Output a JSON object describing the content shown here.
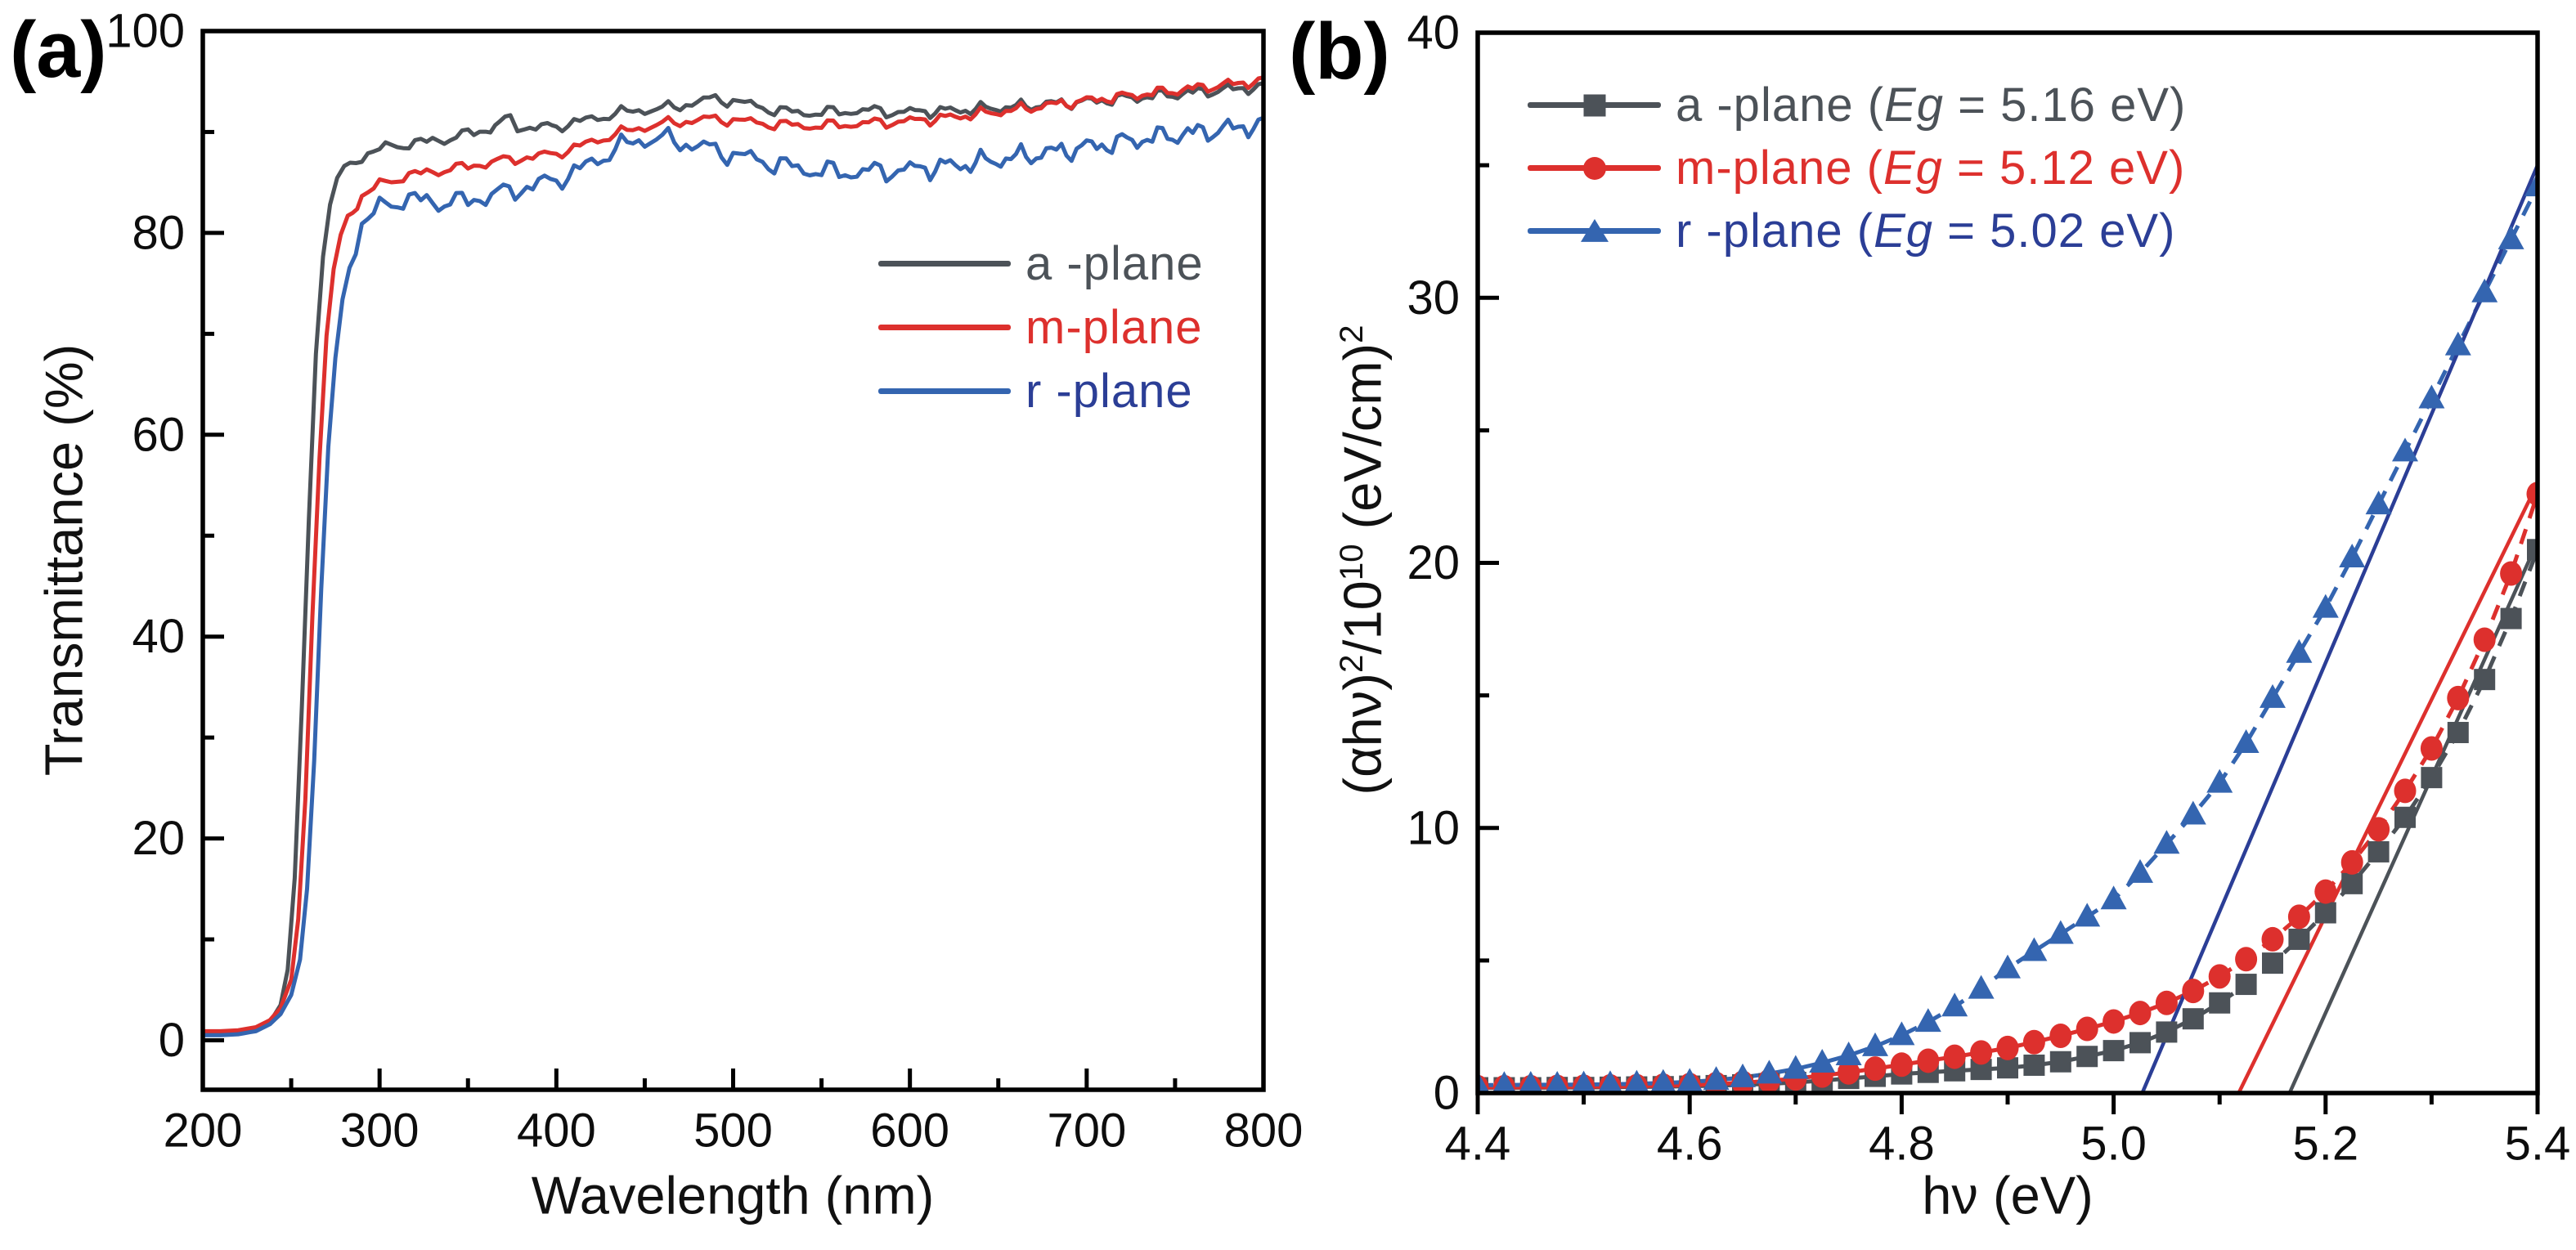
{
  "figure": {
    "panel_a_label": "(a)",
    "panel_b_label": "(b)"
  },
  "panel_a": {
    "x_title": "Wavelength (nm)",
    "y_title": "Transmittance (%)",
    "legend": [
      {
        "label": "a -plane",
        "line_color": "#4c5258",
        "text_color": "#4c5258"
      },
      {
        "label": "m-plane",
        "line_color": "#dd302d",
        "text_color": "#dd302d"
      },
      {
        "label": "r -plane",
        "line_color": "#3465b0",
        "text_color": "#2b3e96"
      }
    ]
  },
  "panel_b": {
    "x_title": "hν (eV)",
    "y_title_segments": [
      {
        "t": "(αhν)"
      },
      {
        "t": "2",
        "sup": true
      },
      {
        "t": "/10"
      },
      {
        "t": "10",
        "sup": true
      },
      {
        "t": " (eV/cm)"
      },
      {
        "t": "2",
        "sup": true
      }
    ],
    "legend": [
      {
        "pre": "a -plane (",
        "eg": "Eg",
        "post": " = 5.16 eV)",
        "marker": "square",
        "line_color": "#4c5258",
        "text_color": "#4c5258"
      },
      {
        "pre": "m-plane (",
        "eg": "Eg",
        "post": " = 5.12 eV)",
        "marker": "circle",
        "line_color": "#dd302d",
        "text_color": "#dd302d"
      },
      {
        "pre": "r -plane (",
        "eg": "Eg",
        "post": " = 5.02 eV)",
        "marker": "triangle",
        "line_color": "#3465b0",
        "text_color": "#2b3e96"
      }
    ]
  },
  "chart_data": [
    {
      "panel": "a",
      "type": "line",
      "title": "",
      "xlabel": "Wavelength (nm)",
      "ylabel": "Transmittance (%)",
      "xlim": [
        200,
        800
      ],
      "ylim": [
        -4.9,
        100
      ],
      "grid": false,
      "legend_position": "right-upper-third",
      "x_ticks": [
        200,
        300,
        400,
        500,
        600,
        700,
        800
      ],
      "x_tick_labels": [
        "200",
        "300",
        "400",
        "500",
        "600",
        "700",
        "800"
      ],
      "x_minor_ticks": [
        250,
        350,
        450,
        550,
        650,
        750
      ],
      "y_ticks": [
        0,
        20,
        40,
        60,
        80,
        100
      ],
      "y_tick_labels": [
        "0",
        "20",
        "40",
        "60",
        "80",
        "100"
      ],
      "y_minor_ticks": [
        10,
        30,
        50,
        70,
        90
      ],
      "series": [
        {
          "name": "a-plane",
          "color": "#4c5258",
          "noise_amp": 0.3,
          "points": [
            [
              200,
              0.6
            ],
            [
              210,
              0.6
            ],
            [
              220,
              0.7
            ],
            [
              230,
              1.0
            ],
            [
              238,
              1.8
            ],
            [
              244,
              3.5
            ],
            [
              248,
              7
            ],
            [
              252,
              16
            ],
            [
              256,
              33
            ],
            [
              260,
              52
            ],
            [
              264,
              68
            ],
            [
              268,
              78
            ],
            [
              272,
              83
            ],
            [
              276,
              85
            ],
            [
              280,
              86.3
            ],
            [
              290,
              87.6
            ],
            [
              300,
              88.3
            ],
            [
              310,
              88.7
            ],
            [
              320,
              88.9
            ],
            [
              330,
              89.1
            ],
            [
              340,
              89.4
            ],
            [
              350,
              89.8
            ],
            [
              360,
              90.2
            ],
            [
              368,
              90.8
            ],
            [
              374,
              91.4
            ],
            [
              378,
              90.6
            ],
            [
              385,
              90.4
            ],
            [
              395,
              90.5
            ],
            [
              400,
              90.6
            ],
            [
              410,
              90.9
            ],
            [
              420,
              91.3
            ],
            [
              430,
              91.7
            ],
            [
              440,
              92.0
            ],
            [
              450,
              92.2
            ],
            [
              460,
              92.3
            ],
            [
              470,
              92.6
            ],
            [
              480,
              93.0
            ],
            [
              490,
              93.3
            ],
            [
              500,
              93.1
            ],
            [
              510,
              92.7
            ],
            [
              520,
              92.3
            ],
            [
              530,
              92.0
            ],
            [
              540,
              91.9
            ],
            [
              550,
              91.9
            ],
            [
              560,
              92.0
            ],
            [
              570,
              92.1
            ],
            [
              580,
              92.1
            ],
            [
              590,
              92.0
            ],
            [
              600,
              92.0
            ],
            [
              620,
              92.1
            ],
            [
              640,
              92.3
            ],
            [
              660,
              92.5
            ],
            [
              680,
              92.8
            ],
            [
              700,
              93.0
            ],
            [
              720,
              93.3
            ],
            [
              740,
              93.6
            ],
            [
              760,
              93.9
            ],
            [
              780,
              94.2
            ],
            [
              800,
              94.5
            ]
          ]
        },
        {
          "name": "m-plane",
          "color": "#dd302d",
          "noise_amp": 0.28,
          "points": [
            [
              200,
              0.9
            ],
            [
              210,
              0.9
            ],
            [
              220,
              1.0
            ],
            [
              230,
              1.3
            ],
            [
              238,
              2.0
            ],
            [
              244,
              3.2
            ],
            [
              250,
              6
            ],
            [
              254,
              12
            ],
            [
              258,
              24
            ],
            [
              262,
              42
            ],
            [
              266,
              58
            ],
            [
              270,
              70
            ],
            [
              274,
              76
            ],
            [
              278,
              79.5
            ],
            [
              282,
              81.5
            ],
            [
              290,
              83.6
            ],
            [
              300,
              84.8
            ],
            [
              310,
              85.4
            ],
            [
              320,
              85.8
            ],
            [
              330,
              86.1
            ],
            [
              340,
              86.3
            ],
            [
              350,
              86.6
            ],
            [
              360,
              86.9
            ],
            [
              370,
              87.2
            ],
            [
              380,
              87.4
            ],
            [
              390,
              87.6
            ],
            [
              400,
              87.9
            ],
            [
              410,
              88.4
            ],
            [
              420,
              89.0
            ],
            [
              430,
              89.6
            ],
            [
              440,
              90.1
            ],
            [
              450,
              90.5
            ],
            [
              460,
              90.8
            ],
            [
              470,
              91.0
            ],
            [
              480,
              91.2
            ],
            [
              490,
              91.3
            ],
            [
              500,
              91.2
            ],
            [
              510,
              91.0
            ],
            [
              520,
              90.8
            ],
            [
              530,
              90.7
            ],
            [
              540,
              90.6
            ],
            [
              550,
              90.6
            ],
            [
              560,
              90.7
            ],
            [
              570,
              90.8
            ],
            [
              580,
              90.9
            ],
            [
              590,
              91.0
            ],
            [
              600,
              91.1
            ],
            [
              620,
              91.4
            ],
            [
              640,
              91.8
            ],
            [
              660,
              92.2
            ],
            [
              680,
              92.7
            ],
            [
              700,
              93.1
            ],
            [
              720,
              93.5
            ],
            [
              740,
              93.9
            ],
            [
              760,
              94.3
            ],
            [
              780,
              94.7
            ],
            [
              800,
              95.1
            ]
          ]
        },
        {
          "name": "r-plane",
          "color": "#3465b0",
          "noise_amp": 0.55,
          "points": [
            [
              200,
              0.5
            ],
            [
              210,
              0.5
            ],
            [
              220,
              0.6
            ],
            [
              230,
              0.9
            ],
            [
              238,
              1.6
            ],
            [
              244,
              2.6
            ],
            [
              250,
              4.5
            ],
            [
              255,
              8
            ],
            [
              259,
              15
            ],
            [
              263,
              28
            ],
            [
              267,
              45
            ],
            [
              271,
              58
            ],
            [
              275,
              67
            ],
            [
              279,
              73
            ],
            [
              283,
              77
            ],
            [
              290,
              80.8
            ],
            [
              300,
              82.5
            ],
            [
              310,
              83.2
            ],
            [
              320,
              83.3
            ],
            [
              330,
              83.1
            ],
            [
              340,
              83.0
            ],
            [
              350,
              83.2
            ],
            [
              360,
              83.6
            ],
            [
              370,
              84.0
            ],
            [
              380,
              84.4
            ],
            [
              390,
              84.8
            ],
            [
              400,
              85.3
            ],
            [
              410,
              86.0
            ],
            [
              420,
              86.9
            ],
            [
              430,
              88.0
            ],
            [
              440,
              88.8
            ],
            [
              450,
              89.3
            ],
            [
              460,
              89.3
            ],
            [
              470,
              89.0
            ],
            [
              480,
              88.6
            ],
            [
              490,
              88.2
            ],
            [
              500,
              87.8
            ],
            [
              510,
              87.4
            ],
            [
              520,
              87.0
            ],
            [
              530,
              86.6
            ],
            [
              540,
              86.3
            ],
            [
              550,
              86.1
            ],
            [
              560,
              86.0
            ],
            [
              570,
              86.0
            ],
            [
              580,
              86.1
            ],
            [
              590,
              86.2
            ],
            [
              600,
              86.3
            ],
            [
              620,
              86.6
            ],
            [
              640,
              87.0
            ],
            [
              660,
              87.5
            ],
            [
              680,
              88.0
            ],
            [
              700,
              88.5
            ],
            [
              720,
              89.0
            ],
            [
              740,
              89.5
            ],
            [
              760,
              89.9
            ],
            [
              780,
              90.3
            ],
            [
              800,
              90.8
            ]
          ]
        }
      ]
    },
    {
      "panel": "b",
      "type": "scatter-line",
      "title": "",
      "xlabel": "hν (eV)",
      "ylabel": "(αhν)²/10¹⁰ (eV/cm)²",
      "xlim": [
        4.4,
        5.4
      ],
      "ylim": [
        0,
        40
      ],
      "grid": false,
      "legend_position": "upper-left",
      "x_ticks": [
        4.4,
        4.6,
        4.8,
        5.0,
        5.2,
        5.4
      ],
      "x_tick_labels": [
        "4.4",
        "4.6",
        "4.8",
        "5.0",
        "5.2",
        "5.4"
      ],
      "x_minor_ticks": [
        4.5,
        4.7,
        4.9,
        5.1,
        5.3
      ],
      "y_ticks": [
        0,
        10,
        20,
        30,
        40
      ],
      "y_tick_labels": [
        "0",
        "10",
        "20",
        "30",
        "40"
      ],
      "y_minor_ticks": [
        5,
        15,
        25,
        35
      ],
      "x": [
        4.4,
        4.425,
        4.45,
        4.475,
        4.5,
        4.525,
        4.55,
        4.575,
        4.6,
        4.625,
        4.65,
        4.675,
        4.7,
        4.725,
        4.75,
        4.775,
        4.8,
        4.825,
        4.85,
        4.875,
        4.9,
        4.925,
        4.95,
        4.975,
        5.0,
        5.025,
        5.05,
        5.075,
        5.1,
        5.125,
        5.15,
        5.175,
        5.2,
        5.225,
        5.25,
        5.275,
        5.3,
        5.325,
        5.35,
        5.375,
        5.4
      ],
      "series": [
        {
          "name": "a-plane",
          "Eg_eV": 5.16,
          "marker": "square",
          "color": "#4c5258",
          "values": [
            0.2,
            0.2,
            0.2,
            0.21,
            0.21,
            0.22,
            0.23,
            0.24,
            0.26,
            0.28,
            0.31,
            0.35,
            0.4,
            0.47,
            0.55,
            0.63,
            0.72,
            0.78,
            0.84,
            0.89,
            0.95,
            1.05,
            1.18,
            1.38,
            1.6,
            1.9,
            2.3,
            2.8,
            3.4,
            4.1,
            4.9,
            5.8,
            6.8,
            7.9,
            9.1,
            10.4,
            11.9,
            13.6,
            15.6,
            17.9,
            20.5
          ]
        },
        {
          "name": "m-plane",
          "Eg_eV": 5.12,
          "marker": "circle",
          "color": "#dd302d",
          "values": [
            0.22,
            0.22,
            0.22,
            0.23,
            0.24,
            0.25,
            0.26,
            0.28,
            0.3,
            0.34,
            0.39,
            0.46,
            0.55,
            0.66,
            0.78,
            0.92,
            1.07,
            1.22,
            1.37,
            1.53,
            1.7,
            1.92,
            2.16,
            2.42,
            2.7,
            3.02,
            3.4,
            3.85,
            4.4,
            5.05,
            5.8,
            6.65,
            7.6,
            8.7,
            9.95,
            11.4,
            13.0,
            14.9,
            17.1,
            19.6,
            22.6
          ]
        },
        {
          "name": "r-plane",
          "Eg_eV": 5.02,
          "marker": "triangle",
          "color": "#3465b0",
          "values": [
            0.3,
            0.3,
            0.31,
            0.31,
            0.32,
            0.33,
            0.35,
            0.38,
            0.42,
            0.49,
            0.59,
            0.73,
            0.91,
            1.14,
            1.42,
            1.76,
            2.18,
            2.68,
            3.26,
            3.93,
            4.7,
            5.35,
            6.0,
            6.65,
            7.3,
            8.3,
            9.4,
            10.5,
            11.7,
            13.2,
            14.9,
            16.6,
            18.3,
            20.2,
            22.2,
            24.2,
            26.2,
            28.2,
            30.2,
            32.2,
            34.2
          ]
        }
      ],
      "fit_lines": [
        {
          "series": "a-plane",
          "color": "#4c5258",
          "x_intercept": 5.166,
          "x_end": 5.4,
          "y_end": 20.8
        },
        {
          "series": "m-plane",
          "color": "#dd302d",
          "x_intercept": 5.118,
          "x_end": 5.4,
          "y_end": 23.0
        },
        {
          "series": "r-plane",
          "color": "#2b3e96",
          "x_intercept": 5.027,
          "x_end": 5.4,
          "y_end": 35.0
        }
      ]
    }
  ]
}
